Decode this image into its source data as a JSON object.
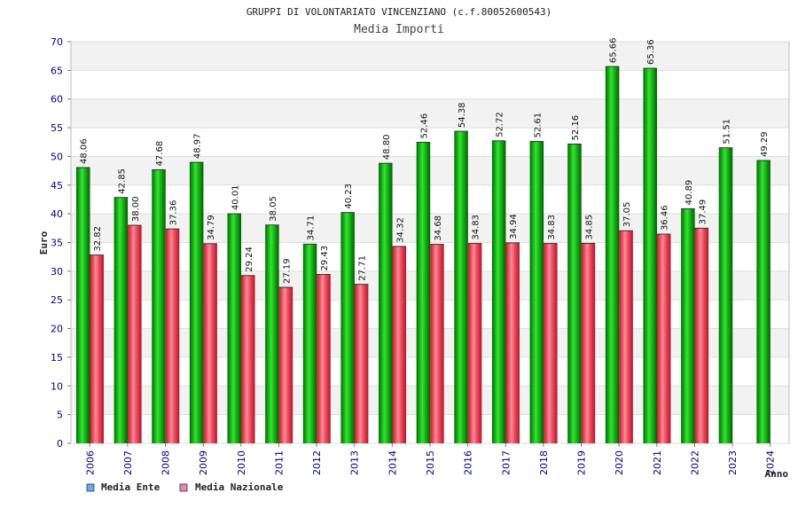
{
  "chart_data": {
    "type": "bar",
    "title": "GRUPPI DI VOLONTARIATO VINCENZIANO (c.f.80052600543)",
    "subtitle": "Media Importi",
    "ylabel": "Euro",
    "xlabel": "Anno",
    "ylim": [
      0,
      70
    ],
    "ytick_step": 5,
    "categories": [
      "2006",
      "2007",
      "2008",
      "2009",
      "2010",
      "2011",
      "2012",
      "2013",
      "2014",
      "2015",
      "2016",
      "2017",
      "2018",
      "2019",
      "2020",
      "2021",
      "2022",
      "2023",
      "2024"
    ],
    "series": [
      {
        "name": "Media Ente",
        "color": "#0fa80f",
        "values": [
          48.06,
          42.85,
          47.68,
          48.97,
          40.01,
          38.05,
          34.71,
          40.23,
          48.8,
          52.46,
          54.38,
          52.72,
          52.61,
          52.16,
          65.66,
          65.36,
          40.89,
          51.51,
          49.29
        ],
        "labels": [
          "48.06",
          "42.85",
          "47.68",
          "48.97",
          "40.01",
          "38.05",
          "34.71",
          "40.23",
          "48.80",
          "52.46",
          "54.38",
          "52.72",
          "52.61",
          "52.16",
          "65.66",
          "65.36",
          "40.89",
          "51.51",
          "49.29"
        ]
      },
      {
        "name": "Media Nazionale",
        "color": "#e8394a",
        "values": [
          32.82,
          38.0,
          37.36,
          34.79,
          29.24,
          27.19,
          29.43,
          27.71,
          34.32,
          34.68,
          34.83,
          34.94,
          34.83,
          34.85,
          37.05,
          36.46,
          37.49,
          null,
          null
        ],
        "labels": [
          "32.82",
          "38.00",
          "37.36",
          "34.79",
          "29.24",
          "27.19",
          "29.43",
          "27.71",
          "34.32",
          "34.68",
          "34.83",
          "34.94",
          "34.83",
          "34.85",
          "37.05",
          "36.46",
          "37.49",
          null,
          null
        ]
      }
    ],
    "legend": [
      {
        "label": "Media Ente",
        "color": "#6fa8e8"
      },
      {
        "label": "Media Nazionale",
        "color": "#e887b5"
      }
    ],
    "legend_position": "bottom-left",
    "grid": true
  }
}
